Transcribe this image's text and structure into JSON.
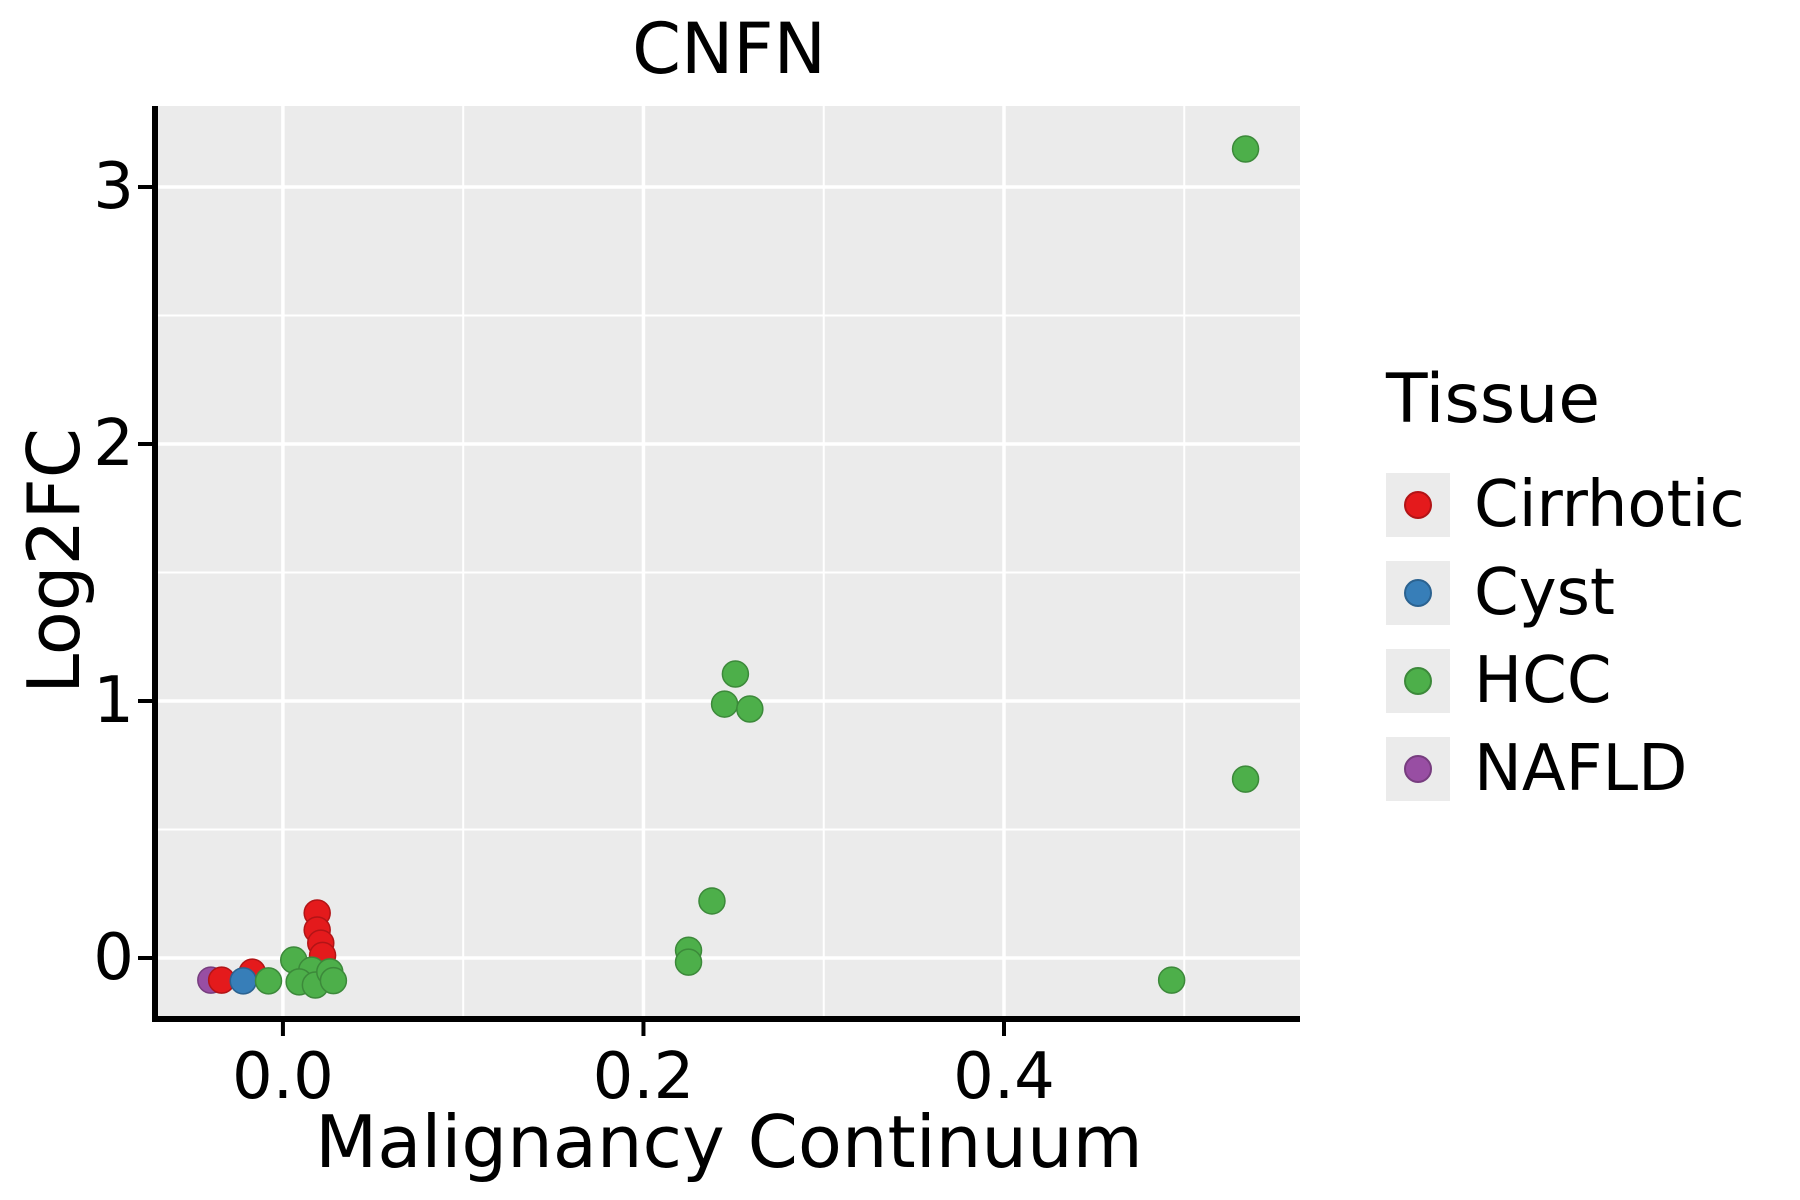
{
  "chart_data": {
    "type": "scatter",
    "title": "CNFN",
    "xlabel": "Malignancy Continuum",
    "ylabel": "Log2FC",
    "xlim": [
      -0.0693,
      0.5642
    ],
    "ylim": [
      -0.2257,
      3.3152
    ],
    "x_ticks": [
      0.0,
      0.2,
      0.4
    ],
    "x_tick_labels": [
      "0.0",
      "0.2",
      "0.4"
    ],
    "x_minor_ticks": [
      0.1,
      0.3,
      0.5
    ],
    "y_ticks": [
      0,
      1,
      2,
      3
    ],
    "y_tick_labels": [
      "0",
      "1",
      "2",
      "3"
    ],
    "y_minor_ticks": [
      0.5,
      1.5,
      2.5
    ],
    "grid": true,
    "panel_background": "#ebebeb",
    "gridline_color": "#ffffff",
    "axis_color": "#000000",
    "marker_diameter_px": 26,
    "legend": {
      "title": "Tissue",
      "position": "right",
      "entries": [
        {
          "label": "Cirrhotic",
          "color": "#e41a1c"
        },
        {
          "label": "Cyst",
          "color": "#377eb8"
        },
        {
          "label": "HCC",
          "color": "#4daf4a"
        },
        {
          "label": "NAFLD",
          "color": "#984ea3"
        }
      ]
    },
    "points": [
      {
        "tissue": "NAFLD",
        "x": -0.04,
        "y": -0.086
      },
      {
        "tissue": "Cirrhotic",
        "x": -0.034,
        "y": -0.086
      },
      {
        "tissue": "Cirrhotic",
        "x": -0.017,
        "y": -0.055
      },
      {
        "tissue": "Cyst",
        "x": -0.022,
        "y": -0.089
      },
      {
        "tissue": "HCC",
        "x": -0.008,
        "y": -0.089
      },
      {
        "tissue": "HCC",
        "x": 0.006,
        "y": -0.008
      },
      {
        "tissue": "Cirrhotic",
        "x": 0.019,
        "y": 0.175
      },
      {
        "tissue": "Cirrhotic",
        "x": 0.019,
        "y": 0.109
      },
      {
        "tissue": "Cirrhotic",
        "x": 0.021,
        "y": 0.058
      },
      {
        "tissue": "Cirrhotic",
        "x": 0.022,
        "y": 0.01
      },
      {
        "tissue": "HCC",
        "x": 0.016,
        "y": -0.047
      },
      {
        "tissue": "HCC",
        "x": 0.009,
        "y": -0.093
      },
      {
        "tissue": "HCC",
        "x": 0.018,
        "y": -0.105
      },
      {
        "tissue": "HCC",
        "x": 0.026,
        "y": -0.054
      },
      {
        "tissue": "HCC",
        "x": 0.028,
        "y": -0.088
      },
      {
        "tissue": "HCC",
        "x": 0.225,
        "y": 0.03
      },
      {
        "tissue": "HCC",
        "x": 0.225,
        "y": -0.016
      },
      {
        "tissue": "HCC",
        "x": 0.238,
        "y": 0.222
      },
      {
        "tissue": "HCC",
        "x": 0.245,
        "y": 0.988
      },
      {
        "tissue": "HCC",
        "x": 0.251,
        "y": 1.105
      },
      {
        "tissue": "HCC",
        "x": 0.259,
        "y": 0.969
      },
      {
        "tissue": "HCC",
        "x": 0.493,
        "y": -0.086
      },
      {
        "tissue": "HCC",
        "x": 0.534,
        "y": 0.696
      },
      {
        "tissue": "HCC",
        "x": 0.534,
        "y": 3.148
      }
    ]
  }
}
